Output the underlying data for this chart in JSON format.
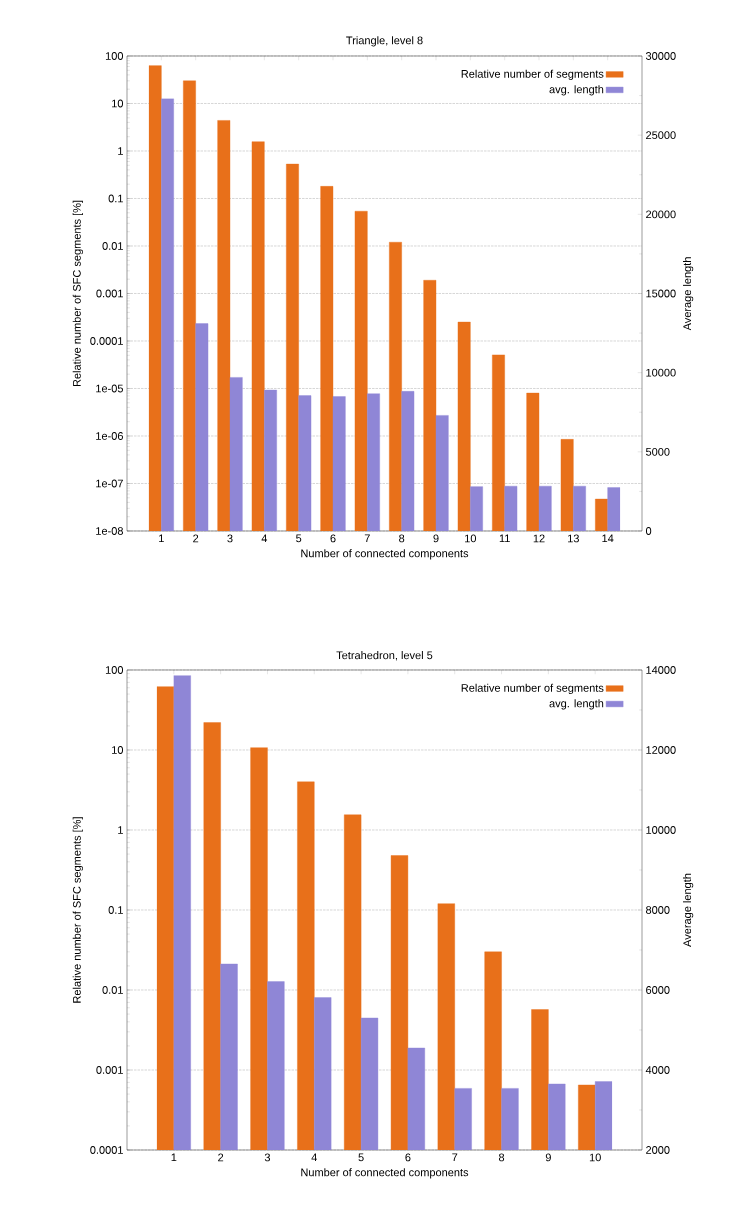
{
  "chart_data": [
    {
      "type": "bar",
      "title": "Triangle, level 8",
      "xlabel": "Number of connected components",
      "ylabel": "Relative number of SFC segments [%]",
      "y2label": "Average length",
      "categories": [
        "1",
        "2",
        "3",
        "4",
        "5",
        "6",
        "7",
        "8",
        "9",
        "10",
        "11",
        "12",
        "13",
        "14"
      ],
      "series": [
        {
          "name": "Relative number of segments",
          "color": "#e8701a",
          "values": [
            63,
            30,
            4.4,
            1.57,
            0.53,
            0.18,
            0.054,
            0.012,
            0.0019,
            0.00025,
            5.1e-05,
            8e-06,
            8.5e-07,
            4.7e-08
          ]
        },
        {
          "name": "avg. length",
          "color": "#8f86d6",
          "axis": "y2",
          "values": [
            27300,
            13100,
            9700,
            8900,
            8550,
            8490,
            8670,
            8820,
            7300,
            2800,
            2830,
            2830,
            2830,
            2740
          ]
        }
      ],
      "ylim": [
        1e-08,
        100
      ],
      "yticks": [
        {
          "value": 1e-08,
          "label": "1e-08"
        },
        {
          "value": 1e-07,
          "label": "1e-07"
        },
        {
          "value": 1e-06,
          "label": "1e-06"
        },
        {
          "value": 1e-05,
          "label": "1e-05"
        },
        0.0001,
        0.001,
        0.01,
        0.1,
        1,
        10,
        100
      ],
      "y2lim": [
        0,
        30000
      ],
      "y2ticks": [
        0,
        5000,
        10000,
        15000,
        20000,
        25000,
        30000
      ],
      "log": "y",
      "grid": "y",
      "legend": "top right"
    },
    {
      "type": "bar",
      "title": "Tetrahedron, level 5",
      "xlabel": "Number of connected components",
      "ylabel": "Relative number of SFC segments [%]",
      "y2label": "Average length",
      "categories": [
        "1",
        "2",
        "3",
        "4",
        "5",
        "6",
        "7",
        "8",
        "9",
        "10"
      ],
      "series": [
        {
          "name": "Relative number of segments",
          "color": "#e8701a",
          "values": [
            62,
            22,
            10.7,
            4.0,
            1.55,
            0.48,
            0.12,
            0.03,
            0.0057,
            0.00065
          ]
        },
        {
          "name": "avg. length",
          "color": "#8f86d6",
          "axis": "y2",
          "values": [
            13860,
            6650,
            6210,
            5810,
            5300,
            4550,
            3540,
            3540,
            3650,
            3710
          ]
        }
      ],
      "ylim": [
        0.0001,
        100
      ],
      "yticks": [
        0.0001,
        0.001,
        0.01,
        0.1,
        1,
        10,
        100
      ],
      "y2lim": [
        2000,
        14000
      ],
      "y2ticks": [
        2000,
        4000,
        6000,
        8000,
        10000,
        12000,
        14000
      ],
      "log": "y",
      "grid": "y",
      "legend": "top right"
    }
  ]
}
